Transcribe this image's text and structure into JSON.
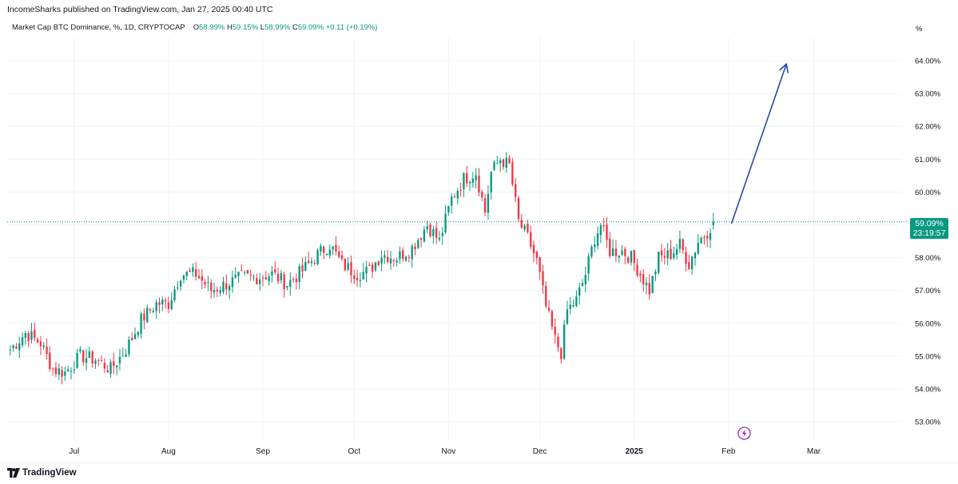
{
  "publisher": {
    "text": "IncomeSharks published on TradingView.com, Jan 27, 2025 00:40 UTC"
  },
  "symbol": {
    "title": "Market Cap BTC Dominance, %, 1D, CRYPTOCAP",
    "o_label": "O",
    "o_value": "58.99%",
    "h_label": "H",
    "h_value": "59.15%",
    "l_label": "L",
    "l_value": "58.99%",
    "c_label": "C",
    "c_value": "59.09%",
    "change": "+0.11 (+0.19%)"
  },
  "price_badge": {
    "price": "59.09%",
    "countdown": "23:19:57"
  },
  "footer": {
    "brand": "TradingView"
  },
  "icons": {
    "logo": "tradingview-logo-icon",
    "lightning": "lightning-icon"
  },
  "colors": {
    "up": "#089981",
    "down": "#f23645",
    "arrow": "#2848a8",
    "grid": "#f0f3fa"
  },
  "chart_data": {
    "type": "candlestick",
    "title": "Market Cap BTC Dominance, %, 1D, CRYPTOCAP",
    "ylabel": "%",
    "y_ticks": [
      "53.00%",
      "54.00%",
      "55.00%",
      "56.00%",
      "57.00%",
      "58.00%",
      "59.00%",
      "60.00%",
      "61.00%",
      "62.00%",
      "63.00%",
      "64.00%"
    ],
    "y_tick_values": [
      53,
      54,
      55,
      56,
      57,
      58,
      59,
      60,
      61,
      62,
      63,
      64
    ],
    "x_ticks": [
      "Jul",
      "Aug",
      "Sep",
      "Oct",
      "Nov",
      "Dec",
      "2025",
      "Feb",
      "Mar"
    ],
    "x_tick_dates": [
      "2024-07-01",
      "2024-08-01",
      "2024-09-01",
      "2024-10-01",
      "2024-11-01",
      "2024-12-01",
      "2025-01-01",
      "2025-02-01",
      "2025-03-01"
    ],
    "x_range": [
      "2024-06-09",
      "2025-03-30"
    ],
    "ylim": [
      52.5,
      65.2
    ],
    "grid": true,
    "last_price": 59.09,
    "daily_close": [
      {
        "date": "2024-06-10",
        "close": 55.2
      },
      {
        "date": "2024-06-15",
        "close": 55.7
      },
      {
        "date": "2024-06-20",
        "close": 55.4
      },
      {
        "date": "2024-06-24",
        "close": 54.6
      },
      {
        "date": "2024-06-28",
        "close": 54.5
      },
      {
        "date": "2024-07-03",
        "close": 55.0
      },
      {
        "date": "2024-07-08",
        "close": 54.9
      },
      {
        "date": "2024-07-13",
        "close": 54.6
      },
      {
        "date": "2024-07-18",
        "close": 55.2
      },
      {
        "date": "2024-07-23",
        "close": 56.1
      },
      {
        "date": "2024-07-28",
        "close": 56.6
      },
      {
        "date": "2024-08-01",
        "close": 56.6
      },
      {
        "date": "2024-08-05",
        "close": 57.5
      },
      {
        "date": "2024-08-10",
        "close": 57.5
      },
      {
        "date": "2024-08-15",
        "close": 57.0
      },
      {
        "date": "2024-08-20",
        "close": 57.2
      },
      {
        "date": "2024-08-25",
        "close": 57.4
      },
      {
        "date": "2024-08-30",
        "close": 57.4
      },
      {
        "date": "2024-09-04",
        "close": 57.5
      },
      {
        "date": "2024-09-09",
        "close": 57.2
      },
      {
        "date": "2024-09-14",
        "close": 57.6
      },
      {
        "date": "2024-09-19",
        "close": 58.1
      },
      {
        "date": "2024-09-23",
        "close": 58.4
      },
      {
        "date": "2024-09-27",
        "close": 57.8
      },
      {
        "date": "2024-10-02",
        "close": 57.5
      },
      {
        "date": "2024-10-06",
        "close": 57.6
      },
      {
        "date": "2024-10-10",
        "close": 58.1
      },
      {
        "date": "2024-10-15",
        "close": 58.0
      },
      {
        "date": "2024-10-20",
        "close": 58.3
      },
      {
        "date": "2024-10-25",
        "close": 59.0
      },
      {
        "date": "2024-10-29",
        "close": 58.5
      },
      {
        "date": "2024-11-02",
        "close": 59.8
      },
      {
        "date": "2024-11-06",
        "close": 60.4
      },
      {
        "date": "2024-11-10",
        "close": 60.6
      },
      {
        "date": "2024-11-13",
        "close": 59.4
      },
      {
        "date": "2024-11-15",
        "close": 60.6
      },
      {
        "date": "2024-11-18",
        "close": 61.0
      },
      {
        "date": "2024-11-21",
        "close": 60.8
      },
      {
        "date": "2024-11-24",
        "close": 59.1
      },
      {
        "date": "2024-11-27",
        "close": 58.6
      },
      {
        "date": "2024-11-30",
        "close": 57.9
      },
      {
        "date": "2024-12-03",
        "close": 56.5
      },
      {
        "date": "2024-12-06",
        "close": 55.5
      },
      {
        "date": "2024-12-08",
        "close": 55.1
      },
      {
        "date": "2024-12-10",
        "close": 56.4
      },
      {
        "date": "2024-12-13",
        "close": 56.7
      },
      {
        "date": "2024-12-16",
        "close": 57.5
      },
      {
        "date": "2024-12-19",
        "close": 58.6
      },
      {
        "date": "2024-12-21",
        "close": 59.0
      },
      {
        "date": "2024-12-24",
        "close": 58.2
      },
      {
        "date": "2024-12-28",
        "close": 58.2
      },
      {
        "date": "2024-12-31",
        "close": 58.0
      },
      {
        "date": "2025-01-03",
        "close": 57.5
      },
      {
        "date": "2025-01-06",
        "close": 57.0
      },
      {
        "date": "2025-01-09",
        "close": 58.0
      },
      {
        "date": "2025-01-13",
        "close": 58.1
      },
      {
        "date": "2025-01-16",
        "close": 58.4
      },
      {
        "date": "2025-01-19",
        "close": 57.8
      },
      {
        "date": "2025-01-22",
        "close": 58.5
      },
      {
        "date": "2025-01-25",
        "close": 58.8
      },
      {
        "date": "2025-01-27",
        "close": 59.09
      }
    ],
    "annotation": {
      "type": "arrow",
      "from": {
        "date": "2025-02-02",
        "value": 59.05
      },
      "to": {
        "date": "2025-02-20",
        "value": 63.9
      }
    }
  }
}
